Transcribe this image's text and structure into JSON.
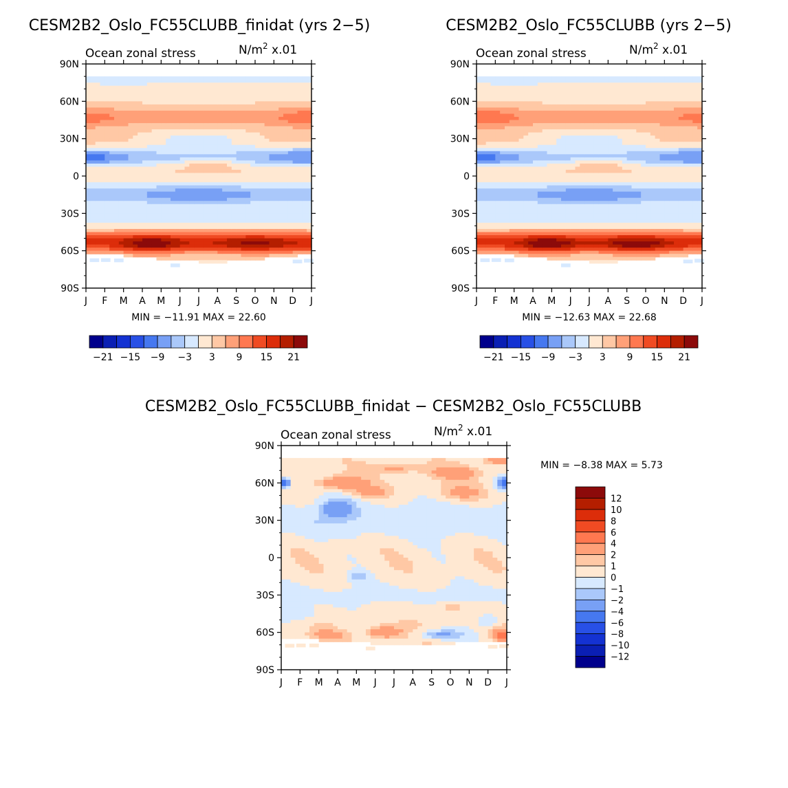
{
  "chart_data": [
    {
      "type": "heatmap",
      "title": "CESM2B2_Oslo_FC55CLUBB_finidat (yrs 2−5)",
      "subtitle_left": "Ocean zonal stress",
      "units_prefix": "N/m",
      "units_exp": "2",
      "units_suffix": " x.01",
      "x_ticks": [
        "J",
        "F",
        "M",
        "A",
        "M",
        "J",
        "J",
        "A",
        "S",
        "O",
        "N",
        "D",
        "J"
      ],
      "y_ticks": [
        "90N",
        "60N",
        "30N",
        "0",
        "30S",
        "60S",
        "90S"
      ],
      "ylim": [
        -90,
        90
      ],
      "stats": "MIN = −11.91  MAX =  22.60",
      "colorbar_ticks": [
        "−21",
        "−15",
        "−9",
        "−3",
        "3",
        "9",
        "15",
        "21"
      ],
      "levels": [
        -24,
        -21,
        -18,
        -15,
        -12,
        -9,
        -6,
        -3,
        0,
        3,
        6,
        9,
        12,
        15,
        18,
        21,
        24
      ],
      "colors": [
        "#00008c",
        "#0a1fb4",
        "#1432d2",
        "#2850e6",
        "#4678f0",
        "#78a0f5",
        "#aac8fa",
        "#d7e9ff",
        "#ffe8d2",
        "#ffc8a5",
        "#ffa078",
        "#ff7850",
        "#f04b23",
        "#dc2d0a",
        "#b41e00",
        "#8c0a0a"
      ],
      "features": [
        {
          "lat": -55,
          "mon": 3.5,
          "v": 9,
          "slat": 6,
          "smon": 1.5
        },
        {
          "lat": -55,
          "mon": 9,
          "v": 6,
          "slat": 6,
          "smon": 2.2
        },
        {
          "lat": 47,
          "mon": 0.3,
          "v": 3,
          "slat": 10,
          "smon": 1.8
        },
        {
          "lat": 47,
          "mon": 12,
          "v": 4,
          "slat": 10,
          "smon": 2
        },
        {
          "lat": 15,
          "mon": 0.5,
          "v": -6,
          "slat": 6,
          "smon": 1.8
        },
        {
          "lat": 15,
          "mon": 11.5,
          "v": -5,
          "slat": 7,
          "smon": 2
        },
        {
          "lat": -15,
          "mon": 6,
          "v": -5,
          "slat": 6,
          "smon": 3
        },
        {
          "lat": 10,
          "mon": 6.5,
          "v": 5,
          "slat": 4,
          "smon": 1.6
        },
        {
          "lat": 80,
          "mon": 2,
          "v": -2,
          "slat": 6,
          "smon": 2
        }
      ]
    },
    {
      "type": "heatmap",
      "title": "CESM2B2_Oslo_FC55CLUBB (yrs 2−5)",
      "subtitle_left": "Ocean zonal stress",
      "units_prefix": "N/m",
      "units_exp": "2",
      "units_suffix": " x.01",
      "x_ticks": [
        "J",
        "F",
        "M",
        "A",
        "M",
        "J",
        "J",
        "A",
        "S",
        "O",
        "N",
        "D",
        "J"
      ],
      "y_ticks": [
        "90N",
        "60N",
        "30N",
        "0",
        "30S",
        "60S",
        "90S"
      ],
      "ylim": [
        -90,
        90
      ],
      "stats": "MIN = −12.63  MAX =  22.68",
      "colorbar_ticks": [
        "−21",
        "−15",
        "−9",
        "−3",
        "3",
        "9",
        "15",
        "21"
      ],
      "levels": [
        -24,
        -21,
        -18,
        -15,
        -12,
        -9,
        -6,
        -3,
        0,
        3,
        6,
        9,
        12,
        15,
        18,
        21,
        24
      ],
      "colors": [
        "#00008c",
        "#0a1fb4",
        "#1432d2",
        "#2850e6",
        "#4678f0",
        "#78a0f5",
        "#aac8fa",
        "#d7e9ff",
        "#ffe8d2",
        "#ffc8a5",
        "#ffa078",
        "#ff7850",
        "#f04b23",
        "#dc2d0a",
        "#b41e00",
        "#8c0a0a"
      ],
      "features": [
        {
          "lat": -55,
          "mon": 3.8,
          "v": 9,
          "slat": 6,
          "smon": 1.5
        },
        {
          "lat": -55,
          "mon": 8.5,
          "v": 8,
          "slat": 6,
          "smon": 1.8
        },
        {
          "lat": 47,
          "mon": 0.5,
          "v": 4,
          "slat": 10,
          "smon": 2
        },
        {
          "lat": 47,
          "mon": 12,
          "v": 3,
          "slat": 10,
          "smon": 2
        },
        {
          "lat": 15,
          "mon": 0.5,
          "v": -6,
          "slat": 6,
          "smon": 1.8
        },
        {
          "lat": 15,
          "mon": 11.5,
          "v": -5,
          "slat": 7,
          "smon": 2
        },
        {
          "lat": -15,
          "mon": 6,
          "v": -5,
          "slat": 6,
          "smon": 3
        },
        {
          "lat": 10,
          "mon": 6.5,
          "v": 5,
          "slat": 4,
          "smon": 1.6
        },
        {
          "lat": 80,
          "mon": 2,
          "v": -2,
          "slat": 6,
          "smon": 2
        }
      ]
    },
    {
      "type": "heatmap",
      "title": "CESM2B2_Oslo_FC55CLUBB_finidat − CESM2B2_Oslo_FC55CLUBB",
      "subtitle_left": "Ocean zonal stress",
      "units_prefix": "N/m",
      "units_exp": "2",
      "units_suffix": " x.01",
      "x_ticks": [
        "J",
        "F",
        "M",
        "A",
        "M",
        "J",
        "J",
        "A",
        "S",
        "O",
        "N",
        "D",
        "J"
      ],
      "y_ticks": [
        "90N",
        "60N",
        "30N",
        "0",
        "30S",
        "60S",
        "90S"
      ],
      "ylim": [
        -90,
        90
      ],
      "stats": "MIN =   −8.38  MAX =    5.73",
      "colorbar_ticks": [
        "12",
        "10",
        "8",
        "6",
        "4",
        "2",
        "1",
        "0",
        "−1",
        "−2",
        "−4",
        "−6",
        "−8",
        "−10",
        "−12"
      ],
      "levels": [
        -14,
        -12,
        -10,
        -8,
        -6,
        -4,
        -2,
        -1,
        0,
        1,
        2,
        4,
        6,
        8,
        10,
        12,
        14
      ],
      "colors": [
        "#00008c",
        "#0a1fb4",
        "#1432d2",
        "#2850e6",
        "#4678f0",
        "#78a0f5",
        "#aac8fa",
        "#d7e9ff",
        "#ffe8d2",
        "#ffc8a5",
        "#ffa078",
        "#ff7850",
        "#f04b23",
        "#dc2d0a",
        "#b41e00",
        "#8c0a0a"
      ],
      "features": [
        {
          "lat": 60,
          "mon": 0,
          "v": -7,
          "slat": 4,
          "smon": 0.45
        },
        {
          "lat": 60,
          "mon": 12,
          "v": -7,
          "slat": 4,
          "smon": 0.45
        },
        {
          "lat": 40,
          "mon": 3,
          "v": -3.5,
          "slat": 7,
          "smon": 0.8
        },
        {
          "lat": 60,
          "mon": 3.2,
          "v": 3.5,
          "slat": 5,
          "smon": 1.2
        },
        {
          "lat": 53,
          "mon": 4.7,
          "v": 2.5,
          "slat": 4,
          "smon": 0.9
        },
        {
          "lat": 72,
          "mon": 6.2,
          "v": 2.2,
          "slat": 4,
          "smon": 1.2
        },
        {
          "lat": 68,
          "mon": 9.2,
          "v": 2.5,
          "slat": 5,
          "smon": 1.3
        },
        {
          "lat": 52,
          "mon": 9.5,
          "v": 2,
          "slat": 6,
          "smon": 1.2
        },
        {
          "lat": 78,
          "mon": 11.5,
          "v": 2.5,
          "slat": 4,
          "smon": 0.8
        },
        {
          "lat": -60,
          "mon": 5.5,
          "v": 3.5,
          "slat": 5,
          "smon": 0.9
        },
        {
          "lat": -62,
          "mon": 11.7,
          "v": 4.5,
          "slat": 4,
          "smon": 0.5
        },
        {
          "lat": -62,
          "mon": 8.5,
          "v": -3,
          "slat": 4,
          "smon": 1.2
        },
        {
          "lat": -62,
          "mon": 2.5,
          "v": 2,
          "slat": 4,
          "smon": 0.9
        },
        {
          "lat": -15,
          "mon": 4,
          "v": -2,
          "slat": 4,
          "smon": 0.5
        },
        {
          "lat": -50,
          "mon": 11,
          "v": -2,
          "slat": 5,
          "smon": 0.5
        },
        {
          "lat": 10,
          "mon": 3,
          "v": 1.2,
          "slat": 5,
          "smon": 0.5
        },
        {
          "lat": -45,
          "mon": 1,
          "v": -1.5,
          "slat": 6,
          "smon": 1
        },
        {
          "lat": -40,
          "mon": 9,
          "v": 1.6,
          "slat": 4,
          "smon": 0.6
        }
      ]
    }
  ]
}
